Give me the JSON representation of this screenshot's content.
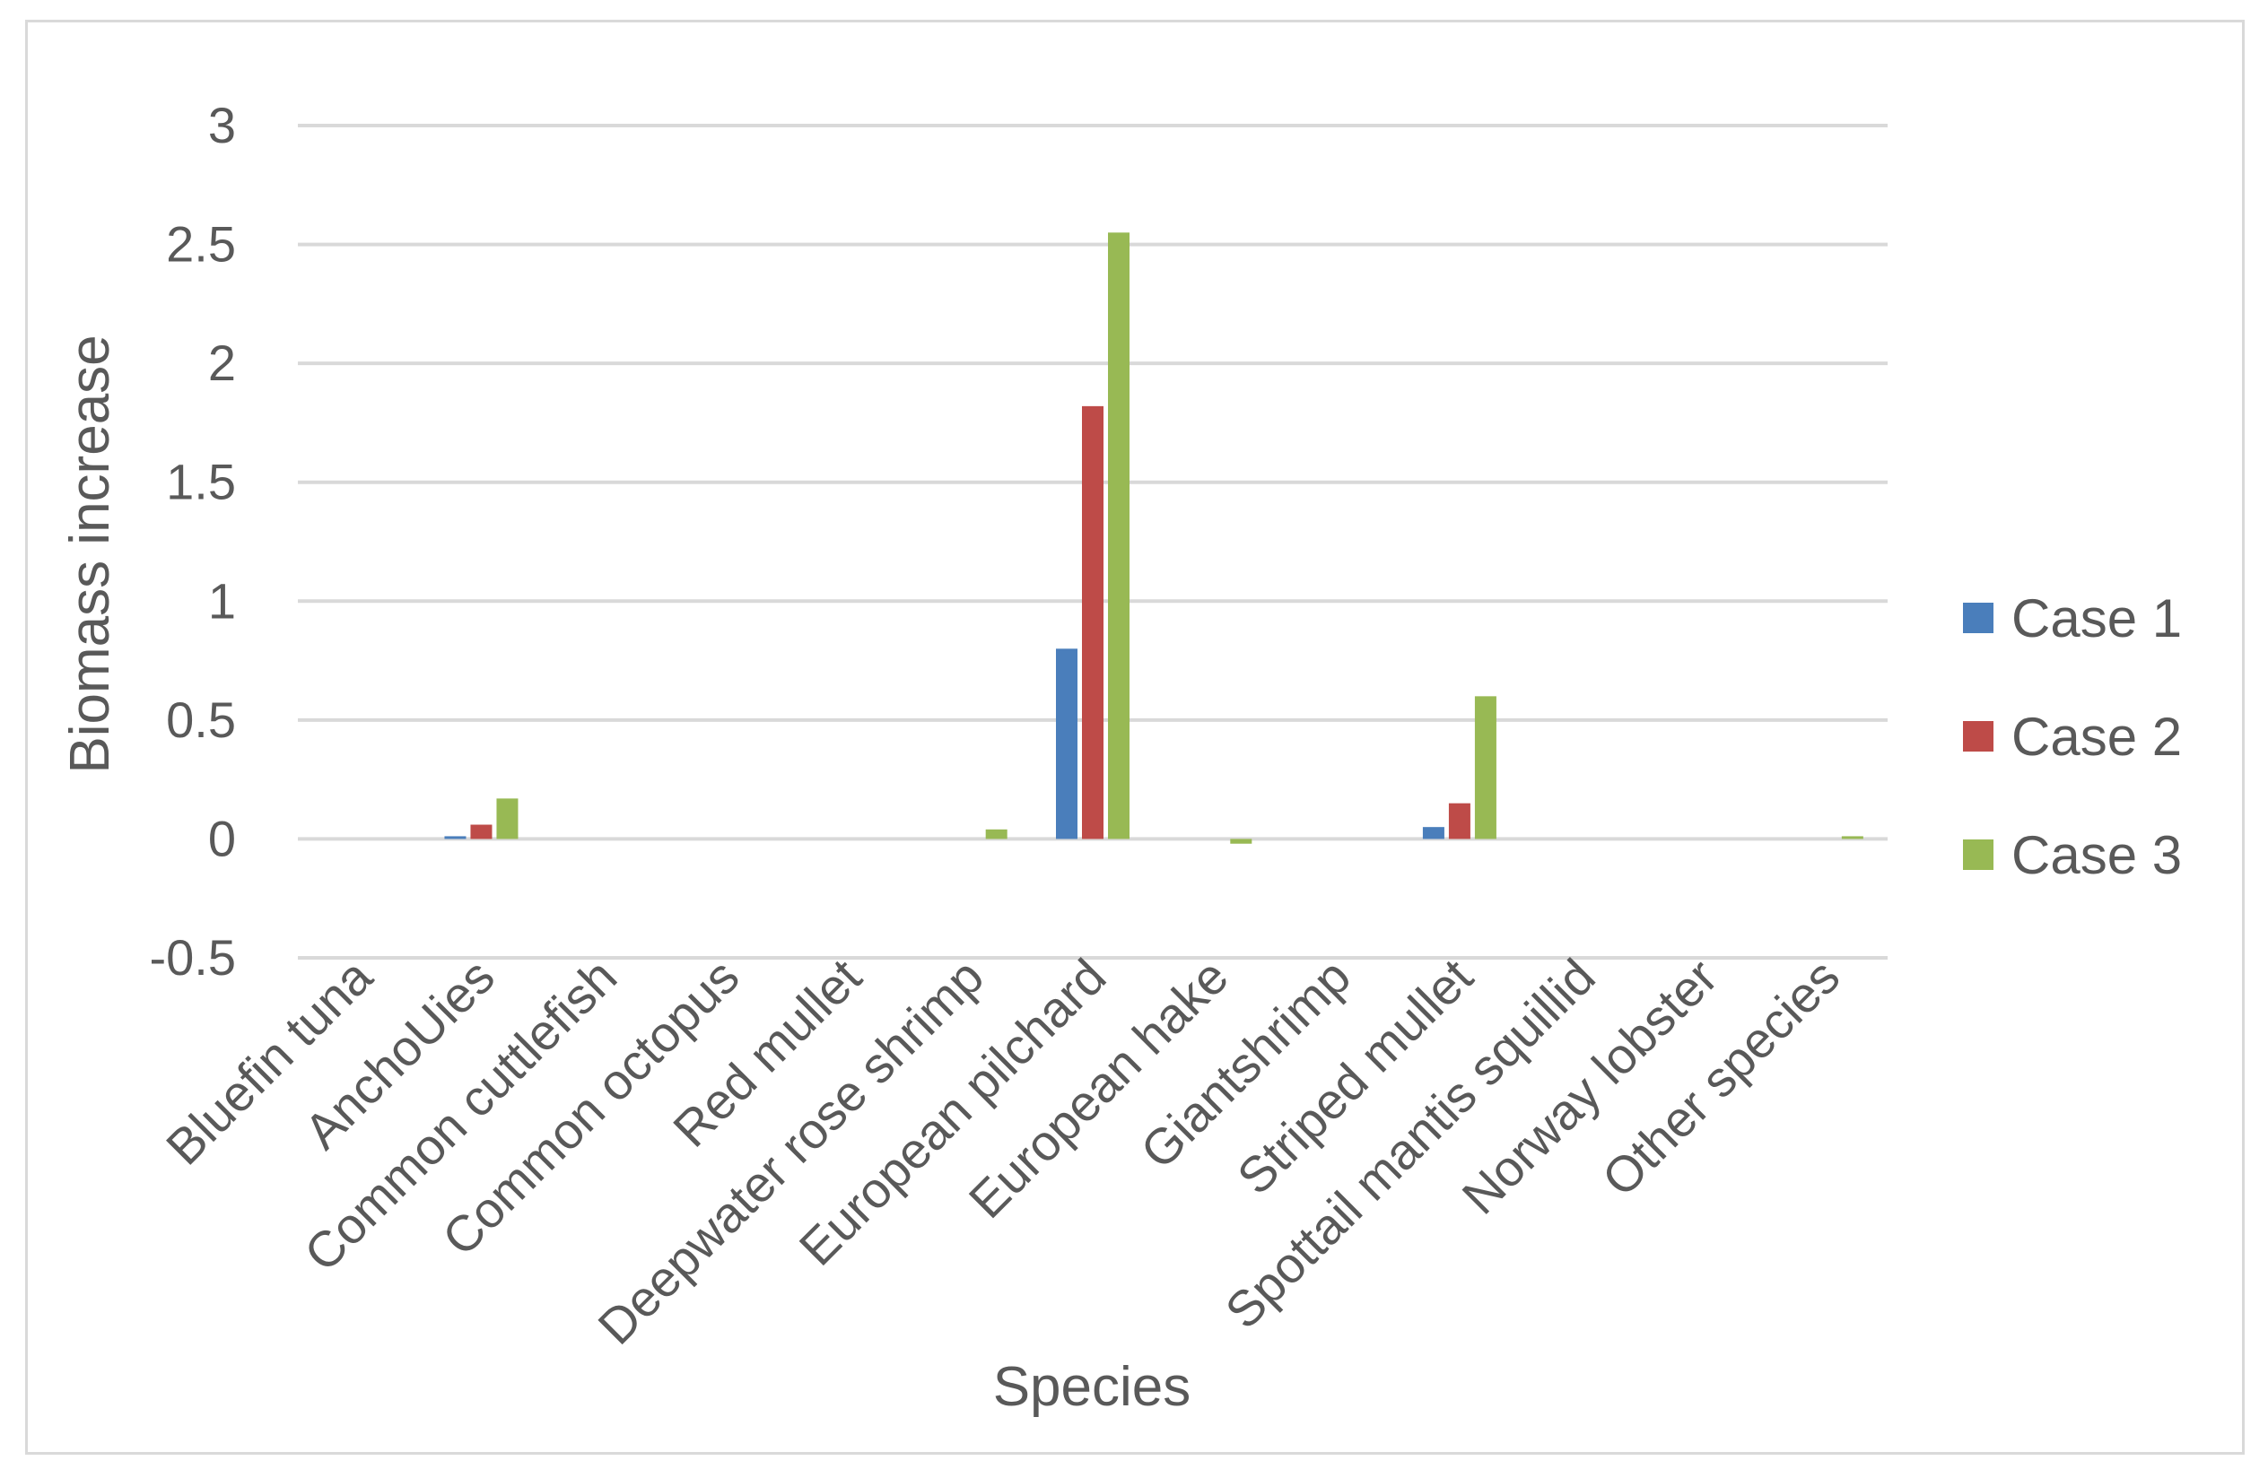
{
  "chart_data": {
    "type": "bar",
    "title": "",
    "xlabel": "Species",
    "ylabel": "Biomass increase",
    "ylim": [
      -0.5,
      3
    ],
    "yticks": [
      -0.5,
      0,
      0.5,
      1,
      1.5,
      2,
      2.5,
      3
    ],
    "ytick_labels": [
      "-0.5",
      "0",
      "0.5",
      "1",
      "1.5",
      "2",
      "2.5",
      "3"
    ],
    "grid": true,
    "legend_position": "right",
    "categories": [
      "Bluefin tuna",
      "AnchoUies",
      "Common cuttlefish",
      "Common octopus",
      "Red mullet",
      "Deepwater rose shrimp",
      "European pilchard",
      "European hake",
      "Giantshrimp",
      "Striped mullet",
      "Spottail mantis squillid",
      "Norway lobster",
      "Other species"
    ],
    "series": [
      {
        "name": "Case 1",
        "color": "#4a7ebb",
        "values": [
          0,
          0.01,
          0,
          0,
          0,
          0,
          0.8,
          0,
          0,
          0.05,
          0,
          0,
          0
        ]
      },
      {
        "name": "Case 2",
        "color": "#be4b48",
        "values": [
          0,
          0.06,
          0,
          0,
          0,
          0,
          1.82,
          0,
          0,
          0.15,
          0,
          0,
          0
        ]
      },
      {
        "name": "Case 3",
        "color": "#98b954",
        "values": [
          0,
          0.17,
          0,
          0,
          0,
          0.04,
          2.55,
          -0.02,
          0,
          0.6,
          0,
          0,
          0.01
        ]
      }
    ]
  }
}
